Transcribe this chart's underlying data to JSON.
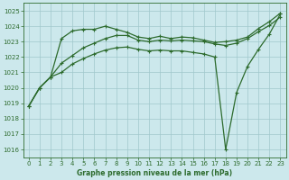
{
  "title": "Graphe pression niveau de la mer (hPa)",
  "bg_color": "#cce8ec",
  "grid_color": "#a0c8cc",
  "line_color": "#2d6b2d",
  "xlim": [
    -0.5,
    23.5
  ],
  "ylim": [
    1015.5,
    1025.5
  ],
  "yticks": [
    1016,
    1017,
    1018,
    1019,
    1020,
    1021,
    1022,
    1023,
    1024,
    1025
  ],
  "xticks": [
    0,
    1,
    2,
    3,
    4,
    5,
    6,
    7,
    8,
    9,
    10,
    11,
    12,
    13,
    14,
    15,
    16,
    17,
    18,
    19,
    20,
    21,
    22,
    23
  ],
  "line1_x": [
    0,
    1,
    2,
    3,
    4,
    5,
    6,
    7,
    8,
    9,
    10,
    11,
    12,
    13,
    14,
    15,
    16,
    17,
    18,
    19,
    20,
    21,
    22,
    23
  ],
  "line1_y": [
    1018.8,
    1020.0,
    1020.7,
    1023.2,
    1023.7,
    1023.8,
    1023.8,
    1024.0,
    1023.8,
    1023.6,
    1023.3,
    1023.2,
    1023.35,
    1023.2,
    1023.3,
    1023.25,
    1023.1,
    1022.95,
    1023.0,
    1023.1,
    1023.3,
    1023.85,
    1024.3,
    1024.85
  ],
  "line2_x": [
    0,
    1,
    2,
    3,
    4,
    5,
    6,
    7,
    8,
    9,
    10,
    11,
    12,
    13,
    14,
    15,
    16,
    17,
    18,
    19,
    20,
    21,
    22,
    23
  ],
  "line2_y": [
    1018.8,
    1020.0,
    1020.7,
    1021.6,
    1022.1,
    1022.6,
    1022.9,
    1023.2,
    1023.4,
    1023.4,
    1023.1,
    1023.0,
    1023.1,
    1023.05,
    1023.1,
    1023.05,
    1023.0,
    1022.85,
    1022.75,
    1022.9,
    1023.2,
    1023.65,
    1024.05,
    1024.6
  ],
  "line3_x": [
    0,
    1,
    2,
    3,
    4,
    5,
    6,
    7,
    8,
    9,
    10,
    11,
    12,
    13,
    14,
    15,
    16,
    17,
    18,
    19,
    20,
    21,
    22,
    23
  ],
  "line3_y": [
    1018.8,
    1020.0,
    1020.7,
    1021.0,
    1021.55,
    1021.9,
    1022.2,
    1022.45,
    1022.6,
    1022.65,
    1022.5,
    1022.4,
    1022.45,
    1022.4,
    1022.4,
    1022.3,
    1022.2,
    1022.0,
    1016.0,
    1019.7,
    1021.4,
    1022.5,
    1023.5,
    1024.8
  ]
}
